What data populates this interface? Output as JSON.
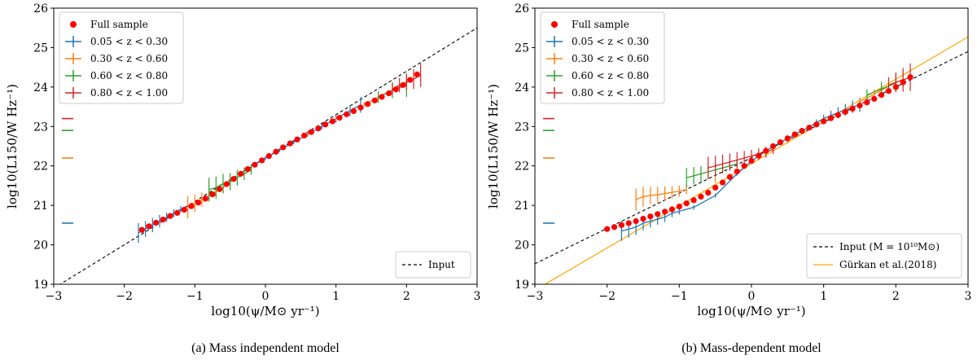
{
  "figure": {
    "panels": [
      "a",
      "b"
    ]
  },
  "colors": {
    "z1": "#1f77b4",
    "z2": "#ff7f0e",
    "z3": "#2ca02c",
    "z4": "#d62728",
    "full": "#ff0000",
    "gurkan": "#ffa500",
    "input": "#000000"
  },
  "chart_data": [
    {
      "type": "line",
      "caption": "(a)  Mass independent model",
      "xlabel": "log10(ψ/M⊙ yr⁻¹)",
      "ylabel": "log10(L150/W Hz⁻¹)",
      "xlim": [
        -3,
        3
      ],
      "ylim": [
        19,
        26
      ],
      "xticks": [
        "−3",
        "−2",
        "−1",
        "0",
        "1",
        "2",
        "3"
      ],
      "yticks": [
        "19",
        "20",
        "21",
        "22",
        "23",
        "24",
        "25",
        "26"
      ],
      "legend_top": [
        "Full sample",
        "0.05 < z < 0.30",
        "0.30 < z < 0.60",
        "0.60 < z < 0.80",
        "0.80 < z < 1.00"
      ],
      "legend_bottom": [
        "Input"
      ],
      "input_line": {
        "x": [
          -3,
          3
        ],
        "y": [
          18.9,
          25.5
        ]
      },
      "gurkan_line": null,
      "full_sample": {
        "x": [
          -1.75,
          -1.65,
          -1.55,
          -1.45,
          -1.35,
          -1.25,
          -1.15,
          -1.05,
          -0.95,
          -0.85,
          -0.75,
          -0.65,
          -0.55,
          -0.45,
          -0.35,
          -0.25,
          -0.15,
          -0.05,
          0.05,
          0.15,
          0.25,
          0.35,
          0.45,
          0.55,
          0.65,
          0.75,
          0.85,
          0.95,
          1.05,
          1.15,
          1.25,
          1.35,
          1.45,
          1.55,
          1.65,
          1.75,
          1.85,
          1.95,
          2.05,
          2.15
        ],
        "y": [
          20.38,
          20.47,
          20.56,
          20.64,
          20.73,
          20.81,
          20.89,
          20.98,
          21.07,
          21.17,
          21.28,
          21.41,
          21.54,
          21.67,
          21.8,
          21.92,
          22.03,
          22.14,
          22.25,
          22.36,
          22.47,
          22.57,
          22.67,
          22.77,
          22.86,
          22.95,
          23.05,
          23.13,
          23.22,
          23.31,
          23.39,
          23.48,
          23.57,
          23.66,
          23.75,
          23.84,
          23.94,
          24.05,
          24.18,
          24.32
        ]
      },
      "series": [
        {
          "name": "0.05 < z < 0.30",
          "color_key": "z1",
          "x": [
            -1.8,
            -1.7,
            -1.6,
            -1.5,
            -1.4,
            -1.3,
            -1.2,
            -0.2,
            0.0,
            0.2,
            0.4,
            0.6,
            0.8,
            1.0,
            1.2,
            1.35
          ],
          "y": [
            20.3,
            20.4,
            20.5,
            20.6,
            20.7,
            20.8,
            20.9,
            22.0,
            22.2,
            22.4,
            22.6,
            22.8,
            23.0,
            23.2,
            23.4,
            23.55
          ],
          "err": [
            0.25,
            0.2,
            0.18,
            0.16,
            0.12,
            0.1,
            0.08,
            0.05,
            0.05,
            0.05,
            0.05,
            0.06,
            0.07,
            0.1,
            0.14,
            0.2
          ]
        },
        {
          "name": "0.30 < z < 0.60",
          "color_key": "z2",
          "x": [
            -1.1,
            -1.0,
            -0.9,
            -0.8,
            -0.7,
            -0.6,
            -0.5,
            0.6,
            1.0,
            1.4,
            1.6,
            1.8,
            2.0
          ],
          "y": [
            20.95,
            21.05,
            21.15,
            21.25,
            21.35,
            21.45,
            21.58,
            22.82,
            23.2,
            23.56,
            23.74,
            23.92,
            24.1
          ],
          "err": [
            0.28,
            0.22,
            0.18,
            0.15,
            0.12,
            0.1,
            0.08,
            0.05,
            0.05,
            0.06,
            0.08,
            0.1,
            0.14
          ]
        },
        {
          "name": "0.60 < z < 0.80",
          "color_key": "z3",
          "x": [
            -0.8,
            -0.7,
            -0.6,
            -0.5,
            -0.4,
            -0.3,
            -0.2,
            1.6,
            1.8,
            2.0
          ],
          "y": [
            21.4,
            21.45,
            21.55,
            21.6,
            21.7,
            21.8,
            21.9,
            23.75,
            23.92,
            24.05
          ],
          "err": [
            0.3,
            0.28,
            0.25,
            0.22,
            0.2,
            0.16,
            0.12,
            0.15,
            0.2,
            0.3
          ]
        },
        {
          "name": "0.80 < z < 1.00",
          "color_key": "z4",
          "x": [
            1.8,
            1.9,
            2.0,
            2.1,
            2.2
          ],
          "y": [
            23.95,
            24.05,
            24.12,
            24.2,
            24.3
          ],
          "err": [
            0.15,
            0.18,
            0.2,
            0.25,
            0.3
          ]
        }
      ],
      "axis_markers": [
        {
          "color_key": "z1",
          "y": 20.55
        },
        {
          "color_key": "z2",
          "y": 22.2
        },
        {
          "color_key": "z3",
          "y": 22.9
        },
        {
          "color_key": "z4",
          "y": 23.2
        }
      ]
    },
    {
      "type": "line",
      "caption": "(b)  Mass-dependent model",
      "xlabel": "log10(ψ/M⊙ yr⁻¹)",
      "ylabel": "log10(L150/W Hz⁻¹)",
      "xlim": [
        -3,
        3
      ],
      "ylim": [
        19,
        26
      ],
      "xticks": [
        "−3",
        "−2",
        "−1",
        "0",
        "1",
        "2",
        "3"
      ],
      "yticks": [
        "19",
        "20",
        "21",
        "22",
        "23",
        "24",
        "25",
        "26"
      ],
      "legend_top": [
        "Full sample",
        "0.05 < z < 0.30",
        "0.30 < z < 0.60",
        "0.60 < z < 0.80",
        "0.80 < z < 1.00"
      ],
      "legend_bottom": [
        "Input (M = 10¹⁰M⊙)",
        "Gürkan et al.(2018)"
      ],
      "input_line": {
        "x": [
          -3,
          3
        ],
        "y": [
          19.52,
          24.9
        ]
      },
      "gurkan_line": {
        "x": [
          -3,
          3
        ],
        "y": [
          18.85,
          25.27
        ]
      },
      "full_sample": {
        "x": [
          -2.0,
          -1.9,
          -1.8,
          -1.7,
          -1.6,
          -1.5,
          -1.4,
          -1.3,
          -1.2,
          -1.1,
          -1.0,
          -0.9,
          -0.8,
          -0.7,
          -0.6,
          -0.5,
          -0.4,
          -0.3,
          -0.2,
          -0.1,
          0.0,
          0.1,
          0.2,
          0.3,
          0.4,
          0.5,
          0.6,
          0.7,
          0.8,
          0.9,
          1.0,
          1.1,
          1.2,
          1.3,
          1.4,
          1.5,
          1.6,
          1.7,
          1.8,
          1.9,
          2.0,
          2.1,
          2.2
        ],
        "y": [
          20.4,
          20.45,
          20.5,
          20.55,
          20.6,
          20.66,
          20.72,
          20.78,
          20.84,
          20.9,
          20.97,
          21.05,
          21.13,
          21.22,
          21.32,
          21.45,
          21.58,
          21.72,
          21.86,
          22.0,
          22.13,
          22.26,
          22.38,
          22.5,
          22.6,
          22.7,
          22.8,
          22.89,
          22.97,
          23.05,
          23.13,
          23.21,
          23.29,
          23.37,
          23.45,
          23.53,
          23.61,
          23.7,
          23.8,
          23.9,
          24.0,
          24.12,
          24.25
        ]
      },
      "series": [
        {
          "name": "0.05 < z < 0.30",
          "color_key": "z1",
          "x": [
            -1.8,
            -1.7,
            -1.6,
            -1.5,
            -1.4,
            -1.3,
            -1.2,
            -1.1,
            -1.0,
            -0.8,
            -0.5,
            -0.2,
            0.0,
            0.2,
            0.4,
            0.6,
            0.8,
            0.9,
            1.0,
            1.1,
            1.2,
            1.3,
            1.4,
            1.5
          ],
          "y": [
            20.35,
            20.4,
            20.45,
            20.55,
            20.6,
            20.65,
            20.7,
            20.8,
            20.85,
            20.95,
            21.25,
            21.8,
            22.12,
            22.38,
            22.6,
            22.8,
            22.98,
            23.1,
            23.2,
            23.28,
            23.35,
            23.42,
            23.5,
            23.55
          ],
          "err": [
            0.25,
            0.22,
            0.2,
            0.18,
            0.16,
            0.14,
            0.12,
            0.1,
            0.08,
            0.06,
            0.05,
            0.05,
            0.05,
            0.05,
            0.05,
            0.05,
            0.06,
            0.08,
            0.1,
            0.12,
            0.14,
            0.15,
            0.16,
            0.18
          ]
        },
        {
          "name": "0.30 < z < 0.60",
          "color_key": "z2",
          "x": [
            -1.6,
            -1.5,
            -1.4,
            -1.3,
            -1.2,
            -1.1,
            -1.0,
            -0.9,
            -0.5,
            0.0,
            0.5,
            1.0,
            1.5,
            1.7,
            1.9,
            2.1
          ],
          "y": [
            21.15,
            21.22,
            21.25,
            21.27,
            21.3,
            21.33,
            21.36,
            21.4,
            21.65,
            22.1,
            22.62,
            23.12,
            23.62,
            23.82,
            24.02,
            24.2
          ],
          "err": [
            0.28,
            0.25,
            0.22,
            0.2,
            0.18,
            0.16,
            0.14,
            0.12,
            0.08,
            0.05,
            0.05,
            0.05,
            0.08,
            0.12,
            0.16,
            0.2
          ]
        },
        {
          "name": "0.60 < z < 0.80",
          "color_key": "z3",
          "x": [
            -0.9,
            -0.8,
            -0.7,
            -0.6,
            -0.5,
            -0.4,
            -0.3,
            -0.2,
            1.6,
            1.8,
            2.0
          ],
          "y": [
            21.7,
            21.75,
            21.8,
            21.85,
            21.9,
            21.95,
            22.0,
            22.05,
            23.8,
            23.95,
            24.1
          ],
          "err": [
            0.25,
            0.22,
            0.2,
            0.18,
            0.16,
            0.14,
            0.12,
            0.1,
            0.14,
            0.18,
            0.22
          ]
        },
        {
          "name": "0.80 < z < 1.00",
          "color_key": "z4",
          "x": [
            -0.6,
            -0.5,
            -0.4,
            -0.3,
            -0.2,
            -0.1,
            0.0,
            0.1,
            0.2,
            0.3,
            1.9,
            2.0,
            2.1,
            2.2
          ],
          "y": [
            21.95,
            22.0,
            22.05,
            22.1,
            22.15,
            22.2,
            22.25,
            22.3,
            22.35,
            22.42,
            24.05,
            24.12,
            24.18,
            24.25
          ],
          "err": [
            0.28,
            0.26,
            0.24,
            0.22,
            0.2,
            0.18,
            0.16,
            0.15,
            0.14,
            0.12,
            0.2,
            0.25,
            0.3,
            0.35
          ]
        }
      ],
      "axis_markers": [
        {
          "color_key": "z1",
          "y": 20.55
        },
        {
          "color_key": "z2",
          "y": 22.2
        },
        {
          "color_key": "z3",
          "y": 22.9
        },
        {
          "color_key": "z4",
          "y": 23.2
        }
      ]
    }
  ]
}
